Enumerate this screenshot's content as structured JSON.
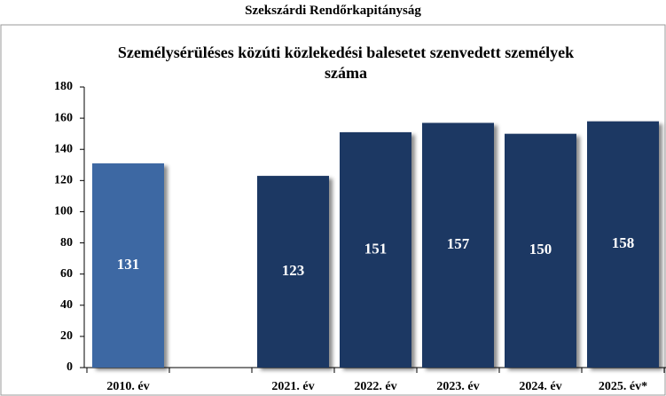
{
  "page_title": "Szekszárdi Rendőrkapitányság",
  "chart_data": {
    "type": "bar",
    "title": "Személysérüléses közúti közlekedési balesetet szenvedett személyek száma",
    "categories": [
      "2010. év",
      null,
      "2021. év",
      "2022. év",
      "2023. év",
      "2024. év",
      "2025. év*"
    ],
    "values": [
      131,
      null,
      123,
      151,
      157,
      150,
      158
    ],
    "colors": [
      "#3d67a3",
      null,
      "#1f3864",
      "#1f3864",
      "#1f3864",
      "#1f3864",
      "#1f3864"
    ],
    "ylim": [
      0,
      180
    ],
    "yticks": [
      0,
      20,
      40,
      60,
      80,
      100,
      120,
      140,
      160,
      180
    ],
    "grid": false
  }
}
